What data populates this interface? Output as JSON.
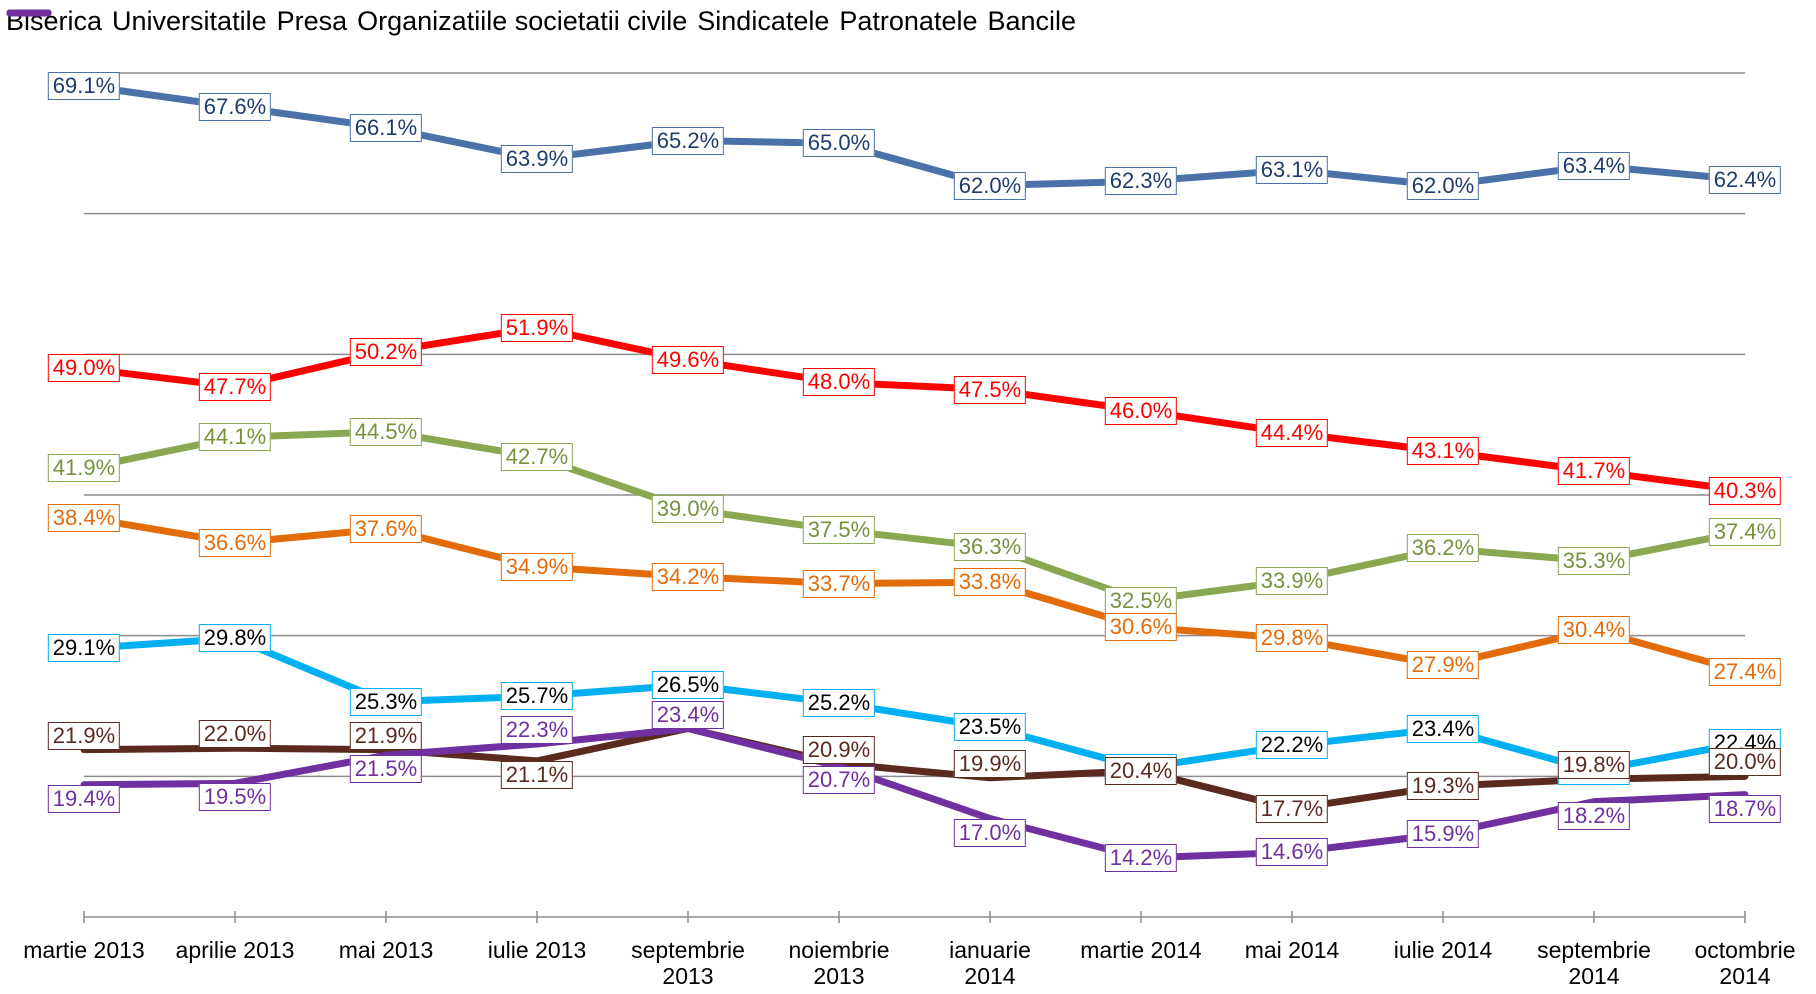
{
  "chart_data": {
    "type": "line",
    "categories": [
      "martie 2013",
      "aprilie 2013",
      "mai 2013",
      "iulie 2013",
      "septembrie 2013",
      "noiembrie 2013",
      "ianuarie 2014",
      "martie 2014",
      "mai 2014",
      "iulie 2014",
      "septembrie 2014",
      "octombrie 2014"
    ],
    "ylim": [
      10,
      70
    ],
    "yticks": [
      20,
      30,
      40,
      50,
      60,
      70
    ],
    "grid": true,
    "legend": "top",
    "series": [
      {
        "name": "Biserica",
        "color": "#4a72a8",
        "values": [
          69.1,
          67.6,
          66.1,
          63.9,
          65.2,
          65.0,
          62.0,
          62.3,
          63.1,
          62.0,
          63.4,
          62.4
        ],
        "value_labels": [
          "69.1%",
          "67.6%",
          "66.1%",
          "63.9%",
          "65.2%",
          "65.0%",
          "62.0%",
          "62.3%",
          "63.1%",
          "62.0%",
          "63.4%",
          "62.4%"
        ]
      },
      {
        "name": "Universitatile",
        "color": "#ff0000",
        "values": [
          49.0,
          47.7,
          50.2,
          51.9,
          49.6,
          48.0,
          47.5,
          46.0,
          44.4,
          43.1,
          41.7,
          40.3
        ],
        "value_labels": [
          "49.0%",
          "47.7%",
          "50.2%",
          "51.9%",
          "49.6%",
          "48.0%",
          "47.5%",
          "46.0%",
          "44.4%",
          "43.1%",
          "41.7%",
          "40.3%"
        ]
      },
      {
        "name": "Presa",
        "color": "#8aa851",
        "values": [
          41.9,
          44.1,
          44.5,
          42.7,
          39.0,
          37.5,
          36.3,
          32.5,
          33.9,
          36.2,
          35.3,
          37.4
        ],
        "value_labels": [
          "41.9%",
          "44.1%",
          "44.5%",
          "42.7%",
          "39.0%",
          "37.5%",
          "36.3%",
          "32.5%",
          "33.9%",
          "36.2%",
          "35.3%",
          "37.4%"
        ]
      },
      {
        "name": "Organizatiile societatii civile",
        "color": "#e36c0a",
        "values": [
          38.4,
          36.6,
          37.6,
          34.9,
          34.2,
          33.7,
          33.8,
          30.6,
          29.8,
          27.9,
          30.4,
          27.4
        ],
        "value_labels": [
          "38.4%",
          "36.6%",
          "37.6%",
          "34.9%",
          "34.2%",
          "33.7%",
          "33.8%",
          "30.6%",
          "29.8%",
          "27.9%",
          "30.4%",
          "27.4%"
        ]
      },
      {
        "name": "Sindicatele",
        "color": "#00b0f0",
        "values": [
          29.1,
          29.8,
          25.3,
          25.7,
          26.5,
          25.2,
          23.5,
          20.6,
          22.2,
          23.4,
          20.4,
          22.4
        ],
        "value_labels": [
          "29.1%",
          "29.8%",
          "25.3%",
          "25.7%",
          "26.5%",
          "25.2%",
          "23.5%",
          "20.6%",
          "22.2%",
          "23.4%",
          "20.4%",
          "22.4%"
        ]
      },
      {
        "name": "Patronatele",
        "color": "#5b2a1e",
        "values": [
          21.9,
          22.0,
          21.9,
          21.1,
          23.4,
          20.9,
          19.9,
          20.4,
          17.7,
          19.3,
          19.8,
          20.0
        ],
        "value_labels": [
          "21.9%",
          "22.0%",
          "21.9%",
          "21.1%",
          "23.4%",
          "20.9%",
          "19.9%",
          "20.4%",
          "17.7%",
          "19.3%",
          "19.8%",
          "20.0%"
        ]
      },
      {
        "name": "Bancile",
        "color": "#7030a0",
        "values": [
          19.4,
          19.5,
          21.5,
          22.3,
          23.4,
          20.7,
          17.0,
          14.2,
          14.6,
          15.9,
          18.2,
          18.7
        ],
        "value_labels": [
          "19.4%",
          "19.5%",
          "21.5%",
          "22.3%",
          "23.4%",
          "20.7%",
          "17.0%",
          "14.2%",
          "14.6%",
          "15.9%",
          "18.2%",
          "18.7%"
        ]
      }
    ]
  }
}
